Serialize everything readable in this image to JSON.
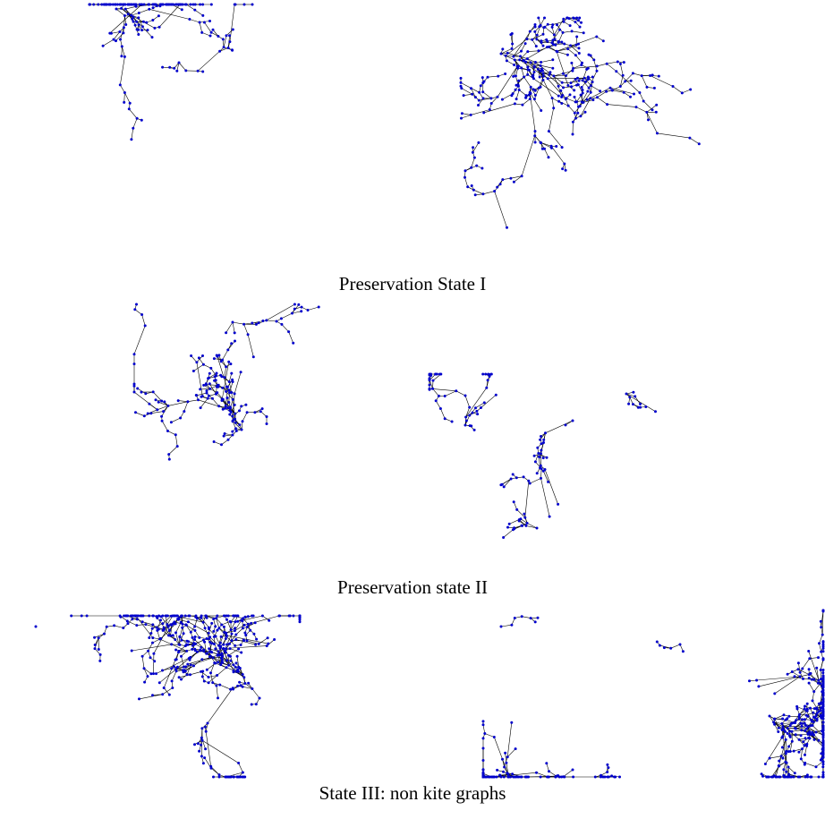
{
  "figure": {
    "captions": [
      "Preservation State I",
      "Preservation state II",
      "State III: non kite graphs"
    ]
  }
}
